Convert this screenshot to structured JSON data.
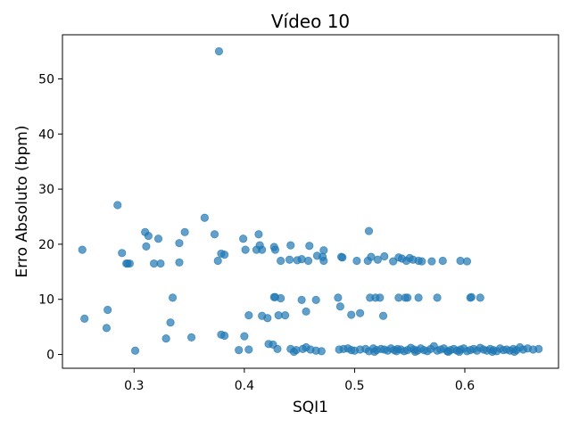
{
  "chart_data": {
    "type": "scatter",
    "title": "Vídeo 10",
    "xlabel": "SQI1",
    "ylabel": "Erro Absoluto (bpm)",
    "xlim": [
      0.235,
      0.685
    ],
    "ylim": [
      -2.5,
      58
    ],
    "xticks": [
      0.3,
      0.4,
      0.5,
      0.6
    ],
    "xtick_labels": [
      "0.3",
      "0.4",
      "0.5",
      "0.6"
    ],
    "yticks": [
      0,
      10,
      20,
      30,
      40,
      50
    ],
    "ytick_labels": [
      "0",
      "10",
      "20",
      "30",
      "40",
      "50"
    ],
    "grid": false,
    "marker_color": "#1f77b4",
    "marker_alpha": 0.7,
    "points": [
      [
        0.377,
        55.0
      ],
      [
        0.285,
        27.1
      ],
      [
        0.364,
        24.8
      ],
      [
        0.31,
        22.2
      ],
      [
        0.346,
        22.2
      ],
      [
        0.373,
        21.8
      ],
      [
        0.413,
        21.8
      ],
      [
        0.513,
        22.4
      ],
      [
        0.313,
        21.5
      ],
      [
        0.322,
        21.0
      ],
      [
        0.399,
        21.0
      ],
      [
        0.341,
        20.2
      ],
      [
        0.311,
        19.6
      ],
      [
        0.414,
        19.8
      ],
      [
        0.427,
        19.5
      ],
      [
        0.442,
        19.8
      ],
      [
        0.459,
        19.7
      ],
      [
        0.253,
        19.0
      ],
      [
        0.401,
        19.0
      ],
      [
        0.411,
        19.0
      ],
      [
        0.416,
        19.0
      ],
      [
        0.428,
        19.0
      ],
      [
        0.472,
        18.9
      ],
      [
        0.289,
        18.4
      ],
      [
        0.379,
        18.3
      ],
      [
        0.382,
        18.1
      ],
      [
        0.466,
        17.9
      ],
      [
        0.471,
        17.7
      ],
      [
        0.488,
        17.7
      ],
      [
        0.489,
        17.6
      ],
      [
        0.515,
        17.7
      ],
      [
        0.527,
        17.8
      ],
      [
        0.54,
        17.6
      ],
      [
        0.543,
        17.4
      ],
      [
        0.55,
        17.5
      ],
      [
        0.376,
        17.0
      ],
      [
        0.433,
        17.0
      ],
      [
        0.441,
        17.2
      ],
      [
        0.448,
        17.1
      ],
      [
        0.452,
        17.3
      ],
      [
        0.458,
        17.0
      ],
      [
        0.472,
        17.0
      ],
      [
        0.502,
        17.0
      ],
      [
        0.512,
        17.0
      ],
      [
        0.521,
        17.2
      ],
      [
        0.535,
        16.9
      ],
      [
        0.547,
        17.0
      ],
      [
        0.553,
        17.2
      ],
      [
        0.558,
        17.0
      ],
      [
        0.561,
        16.9
      ],
      [
        0.57,
        16.9
      ],
      [
        0.58,
        17.0
      ],
      [
        0.596,
        17.0
      ],
      [
        0.602,
        16.9
      ],
      [
        0.293,
        16.5
      ],
      [
        0.294,
        16.5
      ],
      [
        0.296,
        16.5
      ],
      [
        0.318,
        16.5
      ],
      [
        0.324,
        16.5
      ],
      [
        0.341,
        16.7
      ],
      [
        0.335,
        10.3
      ],
      [
        0.427,
        10.4
      ],
      [
        0.428,
        10.4
      ],
      [
        0.433,
        10.2
      ],
      [
        0.452,
        9.9
      ],
      [
        0.465,
        9.9
      ],
      [
        0.485,
        10.3
      ],
      [
        0.514,
        10.3
      ],
      [
        0.519,
        10.3
      ],
      [
        0.523,
        10.3
      ],
      [
        0.54,
        10.3
      ],
      [
        0.546,
        10.3
      ],
      [
        0.548,
        10.3
      ],
      [
        0.558,
        10.3
      ],
      [
        0.575,
        10.3
      ],
      [
        0.605,
        10.3
      ],
      [
        0.606,
        10.4
      ],
      [
        0.614,
        10.3
      ],
      [
        0.487,
        8.7
      ],
      [
        0.276,
        8.1
      ],
      [
        0.456,
        7.8
      ],
      [
        0.497,
        7.2
      ],
      [
        0.505,
        7.5
      ],
      [
        0.526,
        7.0
      ],
      [
        0.404,
        7.1
      ],
      [
        0.416,
        7.0
      ],
      [
        0.431,
        7.1
      ],
      [
        0.437,
        7.1
      ],
      [
        0.421,
        6.6
      ],
      [
        0.255,
        6.5
      ],
      [
        0.333,
        5.8
      ],
      [
        0.275,
        4.8
      ],
      [
        0.379,
        3.6
      ],
      [
        0.382,
        3.4
      ],
      [
        0.4,
        3.3
      ],
      [
        0.352,
        3.1
      ],
      [
        0.329,
        2.9
      ],
      [
        0.422,
        1.9
      ],
      [
        0.426,
        1.8
      ],
      [
        0.43,
        1.0
      ],
      [
        0.395,
        0.8
      ],
      [
        0.404,
        0.9
      ],
      [
        0.301,
        0.7
      ],
      [
        0.442,
        1.0
      ],
      [
        0.447,
        0.8
      ],
      [
        0.453,
        1.0
      ],
      [
        0.456,
        1.3
      ],
      [
        0.46,
        0.9
      ],
      [
        0.465,
        0.7
      ],
      [
        0.445,
        0.5
      ],
      [
        0.47,
        0.6
      ],
      [
        0.486,
        0.9
      ],
      [
        0.49,
        1.0
      ],
      [
        0.494,
        1.1
      ],
      [
        0.497,
        0.8
      ],
      [
        0.5,
        0.7
      ],
      [
        0.505,
        0.9
      ],
      [
        0.51,
        1.0
      ],
      [
        0.513,
        0.6
      ],
      [
        0.517,
        1.1
      ],
      [
        0.52,
        0.8
      ],
      [
        0.524,
        1.0
      ],
      [
        0.527,
        0.9
      ],
      [
        0.53,
        0.7
      ],
      [
        0.533,
        1.1
      ],
      [
        0.536,
        0.8
      ],
      [
        0.539,
        1.0
      ],
      [
        0.542,
        0.9
      ],
      [
        0.545,
        0.6
      ],
      [
        0.548,
        0.8
      ],
      [
        0.551,
        1.2
      ],
      [
        0.554,
        0.9
      ],
      [
        0.557,
        0.7
      ],
      [
        0.56,
        1.1
      ],
      [
        0.563,
        0.8
      ],
      [
        0.566,
        0.6
      ],
      [
        0.569,
        1.0
      ],
      [
        0.572,
        1.5
      ],
      [
        0.575,
        0.7
      ],
      [
        0.578,
        0.9
      ],
      [
        0.581,
        1.1
      ],
      [
        0.584,
        0.6
      ],
      [
        0.587,
        0.8
      ],
      [
        0.59,
        1.0
      ],
      [
        0.593,
        0.7
      ],
      [
        0.596,
        0.9
      ],
      [
        0.599,
        1.1
      ],
      [
        0.602,
        0.6
      ],
      [
        0.605,
        0.8
      ],
      [
        0.608,
        1.0
      ],
      [
        0.611,
        0.7
      ],
      [
        0.614,
        1.2
      ],
      [
        0.617,
        0.9
      ],
      [
        0.62,
        0.7
      ],
      [
        0.623,
        1.0
      ],
      [
        0.626,
        0.8
      ],
      [
        0.629,
        0.6
      ],
      [
        0.632,
        1.1
      ],
      [
        0.635,
        0.8
      ],
      [
        0.638,
        0.9
      ],
      [
        0.641,
        0.7
      ],
      [
        0.644,
        1.0
      ],
      [
        0.647,
        0.8
      ],
      [
        0.65,
        1.3
      ],
      [
        0.653,
        0.9
      ],
      [
        0.657,
        1.1
      ],
      [
        0.662,
        0.9
      ],
      [
        0.667,
        1.0
      ],
      [
        0.518,
        0.5
      ],
      [
        0.538,
        0.6
      ],
      [
        0.555,
        0.5
      ],
      [
        0.585,
        0.5
      ],
      [
        0.595,
        0.5
      ],
      [
        0.625,
        0.5
      ],
      [
        0.645,
        0.5
      ]
    ]
  }
}
